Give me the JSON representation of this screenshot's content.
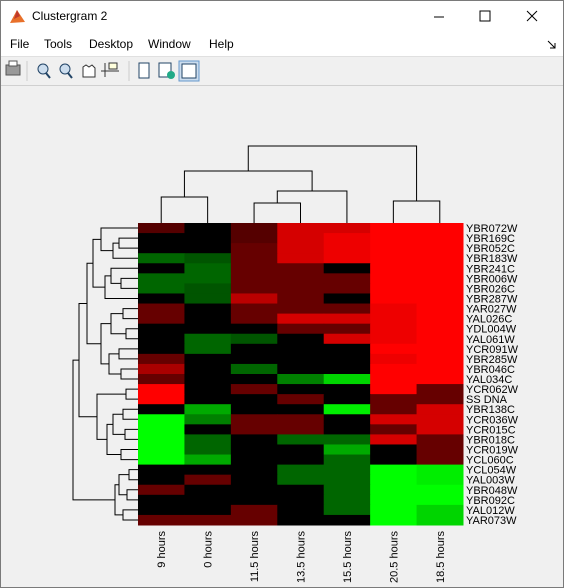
{
  "window": {
    "title": "Clustergram 2",
    "menu": [
      "File",
      "Tools",
      "Desktop",
      "Window",
      "Help"
    ]
  },
  "chart_data": {
    "type": "heatmap",
    "columns": [
      "9 hours",
      "0 hours",
      "11.5 hours",
      "13.5 hours",
      "15.5 hours",
      "20.5 hours",
      "18.5 hours"
    ],
    "rows": [
      "YBR072W",
      "YBR169C",
      "YBR052C",
      "YBR183W",
      "YBR241C",
      "YBR006W",
      "YBR026C",
      "YBR287W",
      "YAR027W",
      "YAL026C",
      "YDL004W",
      "YAL061W",
      "YCR091W",
      "YBR285W",
      "YBR046C",
      "YAL034C",
      "YCR062W",
      "SS DNA",
      "YBR138C",
      "YCR036W",
      "YCR015C",
      "YBR018C",
      "YCR019W",
      "YCL060C",
      "YCL054W",
      "YAL003W",
      "YBR048W",
      "YBR092C",
      "YAL012W",
      "YAR073W"
    ],
    "values": [
      [
        1,
        0,
        1,
        2.5,
        2.5,
        3,
        3
      ],
      [
        0,
        0,
        1,
        2.5,
        2.8,
        3,
        3
      ],
      [
        0,
        0,
        1.2,
        2.5,
        2.8,
        3,
        3
      ],
      [
        -1.2,
        -1,
        1.2,
        2.5,
        2.8,
        3,
        3
      ],
      [
        0,
        -1.2,
        1.2,
        1.2,
        0,
        3,
        3
      ],
      [
        -1.2,
        -1.2,
        1.2,
        1.2,
        1.2,
        3,
        3
      ],
      [
        -1.2,
        -1,
        1.2,
        1.2,
        1.2,
        3,
        3
      ],
      [
        0,
        -1,
        2.2,
        1.2,
        0,
        3,
        3
      ],
      [
        1.2,
        0,
        1.2,
        1.2,
        1.2,
        2.8,
        3
      ],
      [
        1.2,
        0,
        1.2,
        2.5,
        2.5,
        2.8,
        3
      ],
      [
        0,
        0,
        0,
        1.2,
        1.2,
        2.8,
        3
      ],
      [
        0,
        -1.2,
        -1,
        0,
        2.5,
        2.8,
        3
      ],
      [
        0,
        -1.2,
        0,
        0,
        0,
        3,
        3
      ],
      [
        1.2,
        0,
        0,
        0,
        0,
        2.8,
        3
      ],
      [
        2,
        0,
        -1.2,
        0,
        0,
        3,
        3
      ],
      [
        1.2,
        0,
        0,
        -1.5,
        -2.5,
        3,
        3
      ],
      [
        3,
        0,
        1.2,
        0,
        0,
        3,
        1.2
      ],
      [
        3,
        0,
        0,
        1.2,
        0,
        1.2,
        1.2
      ],
      [
        0,
        -2,
        0,
        0,
        -2.8,
        1.2,
        2.5
      ],
      [
        -3,
        -1.5,
        1.2,
        1.2,
        0,
        2.5,
        2.5
      ],
      [
        -3,
        0,
        1.2,
        1.2,
        0,
        1.2,
        2.5
      ],
      [
        -3,
        -1.2,
        0,
        -1.2,
        -1.2,
        2.5,
        1.2
      ],
      [
        -3,
        -1.2,
        0,
        0,
        -2,
        0,
        1.2
      ],
      [
        -3,
        -2,
        0,
        0,
        -1.2,
        0,
        1.2
      ],
      [
        0,
        0,
        0,
        -1.2,
        -1.2,
        -3,
        -2.8
      ],
      [
        0,
        1.2,
        0,
        -1.2,
        -1.2,
        -3,
        -2.8
      ],
      [
        1.2,
        0,
        0,
        0,
        -1.2,
        -3,
        -3
      ],
      [
        0,
        0,
        0,
        0,
        -1.2,
        -3,
        -3
      ],
      [
        0,
        0,
        1.2,
        0,
        -1.2,
        -3,
        -2.5
      ],
      [
        1.2,
        1.2,
        1.2,
        0,
        0,
        -3,
        -2.5
      ]
    ],
    "clim": [
      -3,
      3
    ],
    "colors": {
      "low": "#00ff00",
      "mid": "#000000",
      "high": "#ff0000"
    }
  }
}
